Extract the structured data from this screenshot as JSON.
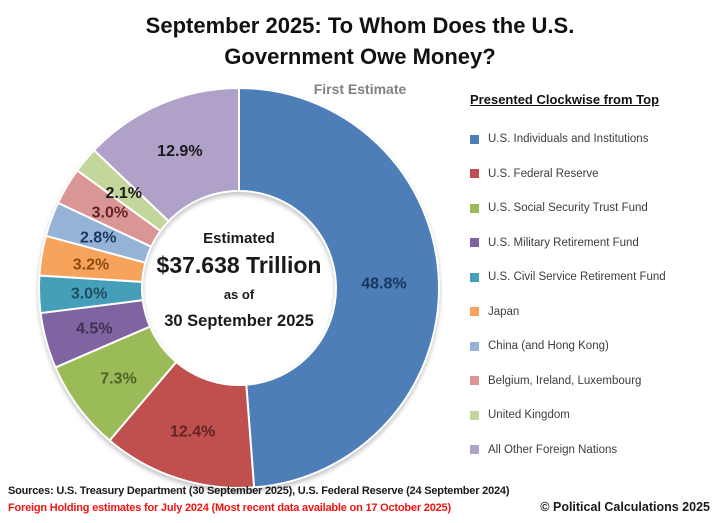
{
  "footer": {
    "sources": "Sources: U.S. Treasury Department (30 September 2025), U.S. Federal Reserve (24 September 2024)",
    "note": "Foreign Holding estimates for July 2024 (Most recent data available on 17 October 2025)",
    "note_color": "#F01511",
    "copyright": "© Political Calculations 2025"
  },
  "chart_data": {
    "type": "pie",
    "subtype": "donut",
    "title_line1": "September 2025: To Whom Does the U.S.",
    "title_line2": "Government Owe Money?",
    "subtitle": "First Estimate",
    "legend_title": "Presented Clockwise from Top",
    "legend_position": "right",
    "direction": "clockwise",
    "start_angle": "top",
    "hole_annotation": {
      "line1": "Estimated",
      "line2": "$37.638 Trillion",
      "line3": "as of",
      "line4": "30 September 2025"
    },
    "slices": [
      {
        "label": "U.S. Individuals and Institutions",
        "value": 48.8,
        "color": "#4D7EB7",
        "label_color": "#17375E"
      },
      {
        "label": "U.S. Federal Reserve",
        "value": 12.4,
        "color": "#C0504D",
        "label_color": "#632423"
      },
      {
        "label": "U.S. Social Security Trust Fund",
        "value": 7.3,
        "color": "#9BBB59",
        "label_color": "#4F6228"
      },
      {
        "label": "U.S. Military Retirement Fund",
        "value": 4.5,
        "color": "#8064A2",
        "label_color": "#3F3151"
      },
      {
        "label": "U.S. Civil Service Retirement Fund",
        "value": 3.0,
        "color": "#459FB8",
        "label_color": "#1F4E63"
      },
      {
        "label": "Japan",
        "value": 3.2,
        "color": "#F7A35C",
        "label_color": "#8C4A0B"
      },
      {
        "label": "China (and Hong Kong)",
        "value": 2.8,
        "color": "#95B3D7",
        "label_color": "#17375E"
      },
      {
        "label": "Belgium, Ireland, Luxembourg",
        "value": 3.0,
        "color": "#D99694",
        "label_color": "#632423"
      },
      {
        "label": "United Kingdom",
        "value": 2.1,
        "color": "#C3D69B",
        "label_color": "#1a1a1a"
      },
      {
        "label": "All Other Foreign Nations",
        "value": 12.9,
        "color": "#B0A1C9",
        "label_color": "#1a1a1a"
      }
    ]
  }
}
